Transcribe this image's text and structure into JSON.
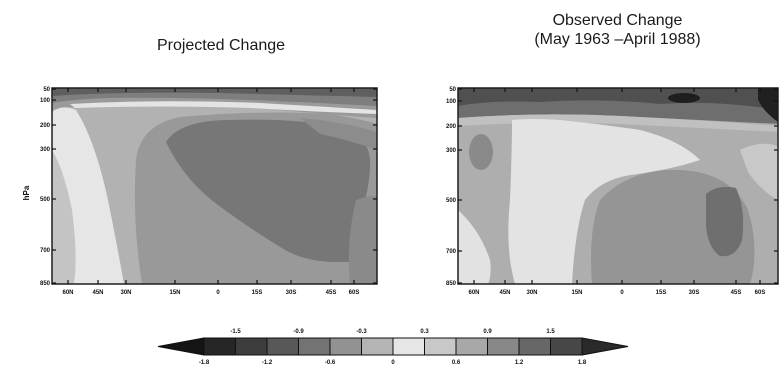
{
  "chart_data": [
    {
      "type": "heatmap",
      "title": "Projected Change",
      "ylabel": "hPa",
      "xlabel": "",
      "x_ticks": [
        "60N",
        "45N",
        "30N",
        "15N",
        "0",
        "15S",
        "30S",
        "45S",
        "60S"
      ],
      "y_ticks": [
        "50",
        "100",
        "200",
        "300",
        "500",
        "700",
        "850"
      ],
      "levels": [
        -1.8,
        -1.5,
        -1.2,
        -0.9,
        -0.6,
        -0.3,
        0,
        0.3,
        0.6,
        0.9,
        1.2,
        1.5,
        1.8
      ]
    },
    {
      "type": "heatmap",
      "title": "Observed Change",
      "subtitle": "(May 1963 –April 1988)",
      "ylabel": "",
      "xlabel": "",
      "x_ticks": [
        "60N",
        "45N",
        "30N",
        "15N",
        "0",
        "15S",
        "30S",
        "45S",
        "60S"
      ],
      "y_ticks": [
        "50",
        "100",
        "200",
        "300",
        "500",
        "700",
        "850"
      ],
      "levels": [
        -1.8,
        -1.5,
        -1.2,
        -0.9,
        -0.6,
        -0.3,
        0,
        0.3,
        0.6,
        0.9,
        1.2,
        1.5,
        1.8
      ]
    }
  ],
  "colorbar": {
    "top_labels": [
      "-1.5",
      "-0.9",
      "-0.3",
      "0.3",
      "0.9",
      "1.5"
    ],
    "bottom_labels": [
      "-1.8",
      "-1.2",
      "-0.6",
      "0",
      "0.6",
      "1.2",
      "1.8"
    ],
    "colors": [
      "#141414",
      "#262626",
      "#3d3d3d",
      "#585858",
      "#737373",
      "#929292",
      "#b4b4b4",
      "#e6e6e6",
      "#c8c8c8",
      "#a8a8a8",
      "#888888",
      "#676767",
      "#474747",
      "#2a2a2a"
    ]
  }
}
